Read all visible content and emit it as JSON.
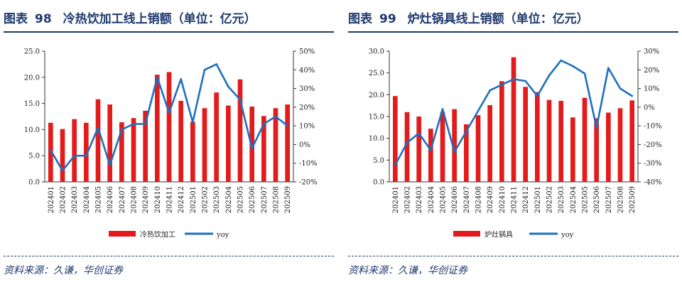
{
  "chart_data": [
    {
      "type": "bar",
      "figure_label": "图表",
      "figure_number": "98",
      "title": "冷热饮加工线上销额（单位：亿元）",
      "source": "资料来源：久谦，华创证券",
      "categories": [
        "202401",
        "202402",
        "202403",
        "202404",
        "202405",
        "202406",
        "202407",
        "202408",
        "202409",
        "202410",
        "202411",
        "202412",
        "202501",
        "202502",
        "202503",
        "202504",
        "202505",
        "202506",
        "202507",
        "202508",
        "202509"
      ],
      "series": [
        {
          "name": "冷热饮加工",
          "axis": "left",
          "type": "bar",
          "color": "#e31b1b",
          "values": [
            11.3,
            10.1,
            12.0,
            11.3,
            15.8,
            14.8,
            11.4,
            12.2,
            13.6,
            20.5,
            21.0,
            15.5,
            11.5,
            14.1,
            17.1,
            14.6,
            19.6,
            14.4,
            12.6,
            14.1,
            14.8
          ]
        },
        {
          "name": "yoy",
          "axis": "right",
          "type": "line",
          "color": "#1f6fc0",
          "values": [
            -3,
            -14,
            -6,
            -6,
            9,
            -11,
            8,
            11,
            11,
            36,
            17,
            35,
            12,
            40,
            43,
            31,
            24,
            -2,
            11,
            15,
            10
          ]
        }
      ],
      "ylim": [
        0,
        25
      ],
      "yticks": [
        "0.0",
        "5.0",
        "10.0",
        "15.0",
        "20.0",
        "25.0"
      ],
      "y2lim": [
        -20,
        50
      ],
      "y2ticks": [
        "-20%",
        "-10%",
        "0%",
        "10%",
        "20%",
        "30%",
        "40%",
        "50%"
      ],
      "legend": [
        "冷热饮加工",
        "yoy"
      ]
    },
    {
      "type": "bar",
      "figure_label": "图表",
      "figure_number": "99",
      "title": "炉灶锅具线上销额（单位：亿元）",
      "source": "资料来源：久谦，华创证券",
      "categories": [
        "202401",
        "202402",
        "202403",
        "202404",
        "202405",
        "202406",
        "202407",
        "202408",
        "202409",
        "202410",
        "202411",
        "202412",
        "202501",
        "202502",
        "202503",
        "202504",
        "202505",
        "202506",
        "202507",
        "202508",
        "202509"
      ],
      "series": [
        {
          "name": "炉灶锅具",
          "axis": "left",
          "type": "bar",
          "color": "#e31b1b",
          "values": [
            19.7,
            16.0,
            15.0,
            12.2,
            16.0,
            16.7,
            13.2,
            15.3,
            17.6,
            23.1,
            28.6,
            21.8,
            20.6,
            18.8,
            18.6,
            14.8,
            19.3,
            14.6,
            15.9,
            16.9,
            18.7
          ]
        },
        {
          "name": "yoy",
          "axis": "right",
          "type": "line",
          "color": "#1f6fc0",
          "values": [
            -31,
            -19,
            -14,
            -23,
            -1,
            -24,
            -13,
            -2,
            9,
            12,
            15,
            14,
            6,
            17,
            25,
            22,
            18,
            -11,
            21,
            10,
            6
          ]
        }
      ],
      "ylim": [
        0,
        30
      ],
      "yticks": [
        "0.0",
        "5.0",
        "10.0",
        "15.0",
        "20.0",
        "25.0",
        "30.0"
      ],
      "y2lim": [
        -40,
        30
      ],
      "y2ticks": [
        "-40%",
        "-30%",
        "-20%",
        "-10%",
        "0%",
        "10%",
        "20%",
        "30%"
      ],
      "legend": [
        "炉灶锅具",
        "yoy"
      ]
    }
  ]
}
